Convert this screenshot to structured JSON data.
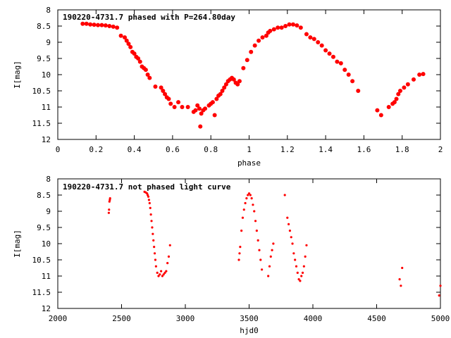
{
  "chart_data": [
    {
      "type": "scatter",
      "title": "190220-4731.7 phased with P=264.80day",
      "xlabel": "phase",
      "ylabel": "I[mag]",
      "xlim": [
        0,
        2
      ],
      "ylim": [
        12,
        8
      ],
      "y_inverted": true,
      "xticks": [
        0,
        0.2,
        0.4,
        0.6,
        0.8,
        1,
        1.2,
        1.4,
        1.6,
        1.8,
        2
      ],
      "xtick_labels": [
        "0",
        "0.2",
        "0.4",
        "0.6",
        "0.8",
        "1",
        "1.2",
        "1.4",
        "1.6",
        "1.8",
        "2"
      ],
      "yticks": [
        8,
        8.5,
        9,
        9.5,
        10,
        10.5,
        11,
        11.5,
        12
      ],
      "ytick_labels": [
        "8",
        "8.5",
        "9",
        "9.5",
        "10",
        "10.5",
        "11",
        "11.5",
        "12"
      ],
      "grid": false,
      "marker_color": "#ff0000",
      "series": [
        {
          "x": [
            0.13,
            0.15,
            0.17,
            0.19,
            0.21,
            0.23,
            0.25,
            0.27,
            0.29,
            0.31,
            0.33,
            0.35,
            0.36,
            0.37,
            0.38,
            0.39,
            0.4,
            0.41,
            0.42,
            0.43,
            0.44,
            0.45,
            0.46,
            0.47,
            0.48,
            0.51,
            0.54,
            0.55,
            0.56,
            0.57,
            0.58,
            0.59,
            0.61,
            0.63,
            0.65,
            0.68,
            0.71,
            0.72,
            0.73,
            0.74,
            0.745,
            0.75,
            0.76,
            0.77,
            0.79,
            0.8,
            0.81,
            0.82,
            0.83,
            0.84,
            0.85,
            0.86,
            0.87,
            0.88,
            0.89,
            0.9,
            0.91,
            0.92,
            0.93,
            0.94,
            0.95,
            0.97,
            0.99,
            1.01,
            1.03,
            1.05,
            1.07,
            1.09,
            1.1,
            1.11,
            1.13,
            1.15,
            1.17,
            1.19,
            1.21,
            1.23,
            1.25,
            1.27,
            1.3,
            1.32,
            1.34,
            1.36,
            1.38,
            1.4,
            1.42,
            1.44,
            1.46,
            1.48,
            1.5,
            1.52,
            1.54,
            1.57,
            1.67,
            1.69,
            1.73,
            1.75,
            1.76,
            1.77,
            1.78,
            1.79,
            1.81,
            1.83,
            1.86,
            1.89,
            1.91
          ],
          "y": [
            8.43,
            8.43,
            8.45,
            8.46,
            8.47,
            8.47,
            8.48,
            8.5,
            8.52,
            8.55,
            8.8,
            8.85,
            8.95,
            9.05,
            9.15,
            9.3,
            9.35,
            9.45,
            9.5,
            9.6,
            9.75,
            9.8,
            9.85,
            10.0,
            10.1,
            10.37,
            10.4,
            10.5,
            10.6,
            10.7,
            10.75,
            10.9,
            11.0,
            10.85,
            11.0,
            11.0,
            11.15,
            11.1,
            10.95,
            11.05,
            11.6,
            11.2,
            11.1,
            11.05,
            10.95,
            10.9,
            10.85,
            11.25,
            10.75,
            10.65,
            10.6,
            10.5,
            10.4,
            10.3,
            10.2,
            10.15,
            10.1,
            10.15,
            10.25,
            10.3,
            10.2,
            9.8,
            9.55,
            9.3,
            9.1,
            8.95,
            8.85,
            8.8,
            8.7,
            8.65,
            8.6,
            8.55,
            8.55,
            8.5,
            8.45,
            8.45,
            8.48,
            8.55,
            8.75,
            8.85,
            8.9,
            9.0,
            9.1,
            9.25,
            9.35,
            9.45,
            9.6,
            9.65,
            9.85,
            10.0,
            10.2,
            10.5,
            11.1,
            11.25,
            11.0,
            10.9,
            10.85,
            10.75,
            10.6,
            10.5,
            10.4,
            10.3,
            10.15,
            10.0,
            9.98
          ]
        }
      ]
    },
    {
      "type": "scatter",
      "title": "190220-4731.7 not phased light curve",
      "xlabel": "hjd0",
      "ylabel": "I[mag]",
      "xlim": [
        2000,
        5000
      ],
      "ylim": [
        12,
        8
      ],
      "y_inverted": true,
      "xticks": [
        2000,
        2500,
        3000,
        3500,
        4000,
        4500,
        5000
      ],
      "xtick_labels": [
        "2000",
        "2500",
        "3000",
        "3500",
        "4000",
        "4500",
        "5000"
      ],
      "yticks": [
        8,
        8.5,
        9,
        9.5,
        10,
        10.5,
        11,
        11.5,
        12
      ],
      "ytick_labels": [
        "8",
        "8.5",
        "9",
        "9.5",
        "10",
        "10.5",
        "11",
        "11.5",
        "12"
      ],
      "grid": false,
      "marker_color": "#ff0000",
      "series": [
        {
          "x": [
            2400,
            2402,
            2405,
            2408,
            2410,
            2680,
            2690,
            2700,
            2705,
            2710,
            2715,
            2720,
            2725,
            2730,
            2735,
            2740,
            2745,
            2750,
            2755,
            2760,
            2765,
            2770,
            2780,
            2790,
            2800,
            2810,
            2820,
            2830,
            2840,
            2850,
            2860,
            2870,
            2880,
            3420,
            3425,
            3430,
            3440,
            3450,
            3460,
            3470,
            3480,
            3490,
            3500,
            3510,
            3520,
            3530,
            3540,
            3550,
            3560,
            3570,
            3580,
            3590,
            3600,
            3650,
            3660,
            3670,
            3680,
            3690,
            3780,
            3800,
            3810,
            3820,
            3830,
            3840,
            3850,
            3860,
            3870,
            3880,
            3890,
            3900,
            3910,
            3920,
            3930,
            3940,
            3950,
            4680,
            4690,
            4700,
            4990,
            5000
          ],
          "y": [
            9.05,
            8.95,
            8.7,
            8.65,
            8.6,
            8.4,
            8.42,
            8.45,
            8.5,
            8.55,
            8.65,
            8.75,
            8.9,
            9.1,
            9.3,
            9.5,
            9.7,
            9.9,
            10.1,
            10.3,
            10.5,
            10.7,
            10.9,
            11.0,
            10.95,
            10.85,
            11.0,
            10.95,
            10.9,
            10.85,
            10.6,
            10.4,
            10.05,
            10.5,
            10.3,
            10.1,
            9.6,
            9.2,
            8.95,
            8.75,
            8.6,
            8.5,
            8.45,
            8.5,
            8.6,
            8.8,
            9.0,
            9.3,
            9.6,
            9.9,
            10.2,
            10.5,
            10.8,
            11.0,
            10.7,
            10.4,
            10.2,
            10.0,
            8.5,
            9.2,
            9.4,
            9.6,
            9.8,
            10.0,
            10.3,
            10.5,
            10.7,
            10.9,
            11.1,
            11.15,
            11.0,
            10.9,
            10.7,
            10.4,
            10.05,
            11.1,
            11.3,
            10.75,
            11.6,
            11.3
          ]
        }
      ]
    }
  ]
}
